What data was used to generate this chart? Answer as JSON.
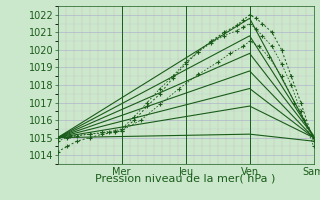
{
  "bg_color": "#cce8cc",
  "grid_color_minor": "#cc9999",
  "grid_color_major": "#aaaacc",
  "line_color": "#1a5c1a",
  "ylim": [
    1013.5,
    1022.5
  ],
  "xlim": [
    0,
    4
  ],
  "yticks": [
    1014,
    1015,
    1016,
    1017,
    1018,
    1019,
    1020,
    1021,
    1022
  ],
  "day_labels": [
    "Mer",
    "Jeu",
    "Ven",
    "Sam"
  ],
  "day_positions": [
    1,
    2,
    3,
    4
  ],
  "xlabel": "Pression niveau de la mer( hPa )",
  "xlabel_fontsize": 8,
  "tick_fontsize": 7,
  "series_dotted": [
    {
      "x": [
        0.0,
        0.15,
        0.3,
        0.5,
        0.7,
        0.9,
        1.0,
        1.2,
        1.4,
        1.6,
        1.8,
        2.0,
        2.2,
        2.4,
        2.6,
        2.8,
        2.9,
        3.0,
        3.1,
        3.2,
        3.35,
        3.5,
        3.65,
        3.8,
        4.0
      ],
      "y": [
        1014.2,
        1014.5,
        1014.8,
        1015.0,
        1015.2,
        1015.3,
        1015.4,
        1016.0,
        1016.8,
        1017.5,
        1018.4,
        1019.2,
        1019.9,
        1020.5,
        1021.0,
        1021.4,
        1021.7,
        1022.0,
        1021.8,
        1021.5,
        1021.0,
        1020.0,
        1018.5,
        1017.0,
        1014.8
      ],
      "lw": 1.2,
      "marker_size": 2.5
    },
    {
      "x": [
        0.0,
        0.15,
        0.3,
        0.5,
        0.7,
        0.9,
        1.0,
        1.2,
        1.4,
        1.6,
        1.8,
        2.0,
        2.2,
        2.4,
        2.6,
        2.8,
        2.9,
        3.0,
        3.1,
        3.2,
        3.35,
        3.5,
        3.65,
        3.8,
        4.0
      ],
      "y": [
        1014.8,
        1015.0,
        1015.1,
        1015.2,
        1015.3,
        1015.4,
        1015.5,
        1016.2,
        1017.0,
        1017.8,
        1018.5,
        1019.3,
        1019.9,
        1020.4,
        1020.8,
        1021.1,
        1021.3,
        1021.5,
        1021.2,
        1020.8,
        1020.2,
        1019.2,
        1018.0,
        1016.5,
        1014.5
      ],
      "lw": 1.0,
      "marker_size": 2.5
    },
    {
      "x": [
        0.0,
        0.2,
        0.5,
        0.8,
        1.0,
        1.3,
        1.6,
        1.9,
        2.2,
        2.5,
        2.7,
        2.9,
        3.0,
        3.15,
        3.3,
        3.5,
        3.7,
        3.85,
        4.0
      ],
      "y": [
        1015.0,
        1015.1,
        1015.2,
        1015.3,
        1015.4,
        1016.0,
        1016.9,
        1017.8,
        1018.6,
        1019.3,
        1019.8,
        1020.2,
        1020.5,
        1020.2,
        1019.6,
        1018.5,
        1017.0,
        1016.0,
        1015.0
      ],
      "lw": 1.0,
      "marker_size": 2.5
    }
  ],
  "series_solid": [
    {
      "x": [
        0.0,
        3.0,
        4.0
      ],
      "y": [
        1015.0,
        1021.8,
        1015.0
      ],
      "lw": 0.8
    },
    {
      "x": [
        0.0,
        3.0,
        4.0
      ],
      "y": [
        1015.0,
        1020.8,
        1015.1
      ],
      "lw": 0.8
    },
    {
      "x": [
        0.0,
        3.0,
        4.0
      ],
      "y": [
        1015.0,
        1019.8,
        1015.1
      ],
      "lw": 0.8
    },
    {
      "x": [
        0.0,
        3.0,
        4.0
      ],
      "y": [
        1015.0,
        1018.8,
        1015.0
      ],
      "lw": 0.8
    },
    {
      "x": [
        0.0,
        3.0,
        4.0
      ],
      "y": [
        1015.0,
        1017.8,
        1015.0
      ],
      "lw": 0.8
    },
    {
      "x": [
        0.0,
        3.0,
        4.0
      ],
      "y": [
        1015.0,
        1016.8,
        1015.0
      ],
      "lw": 0.8
    },
    {
      "x": [
        0.0,
        3.0,
        4.0
      ],
      "y": [
        1015.0,
        1015.2,
        1014.8
      ],
      "lw": 0.8
    }
  ]
}
